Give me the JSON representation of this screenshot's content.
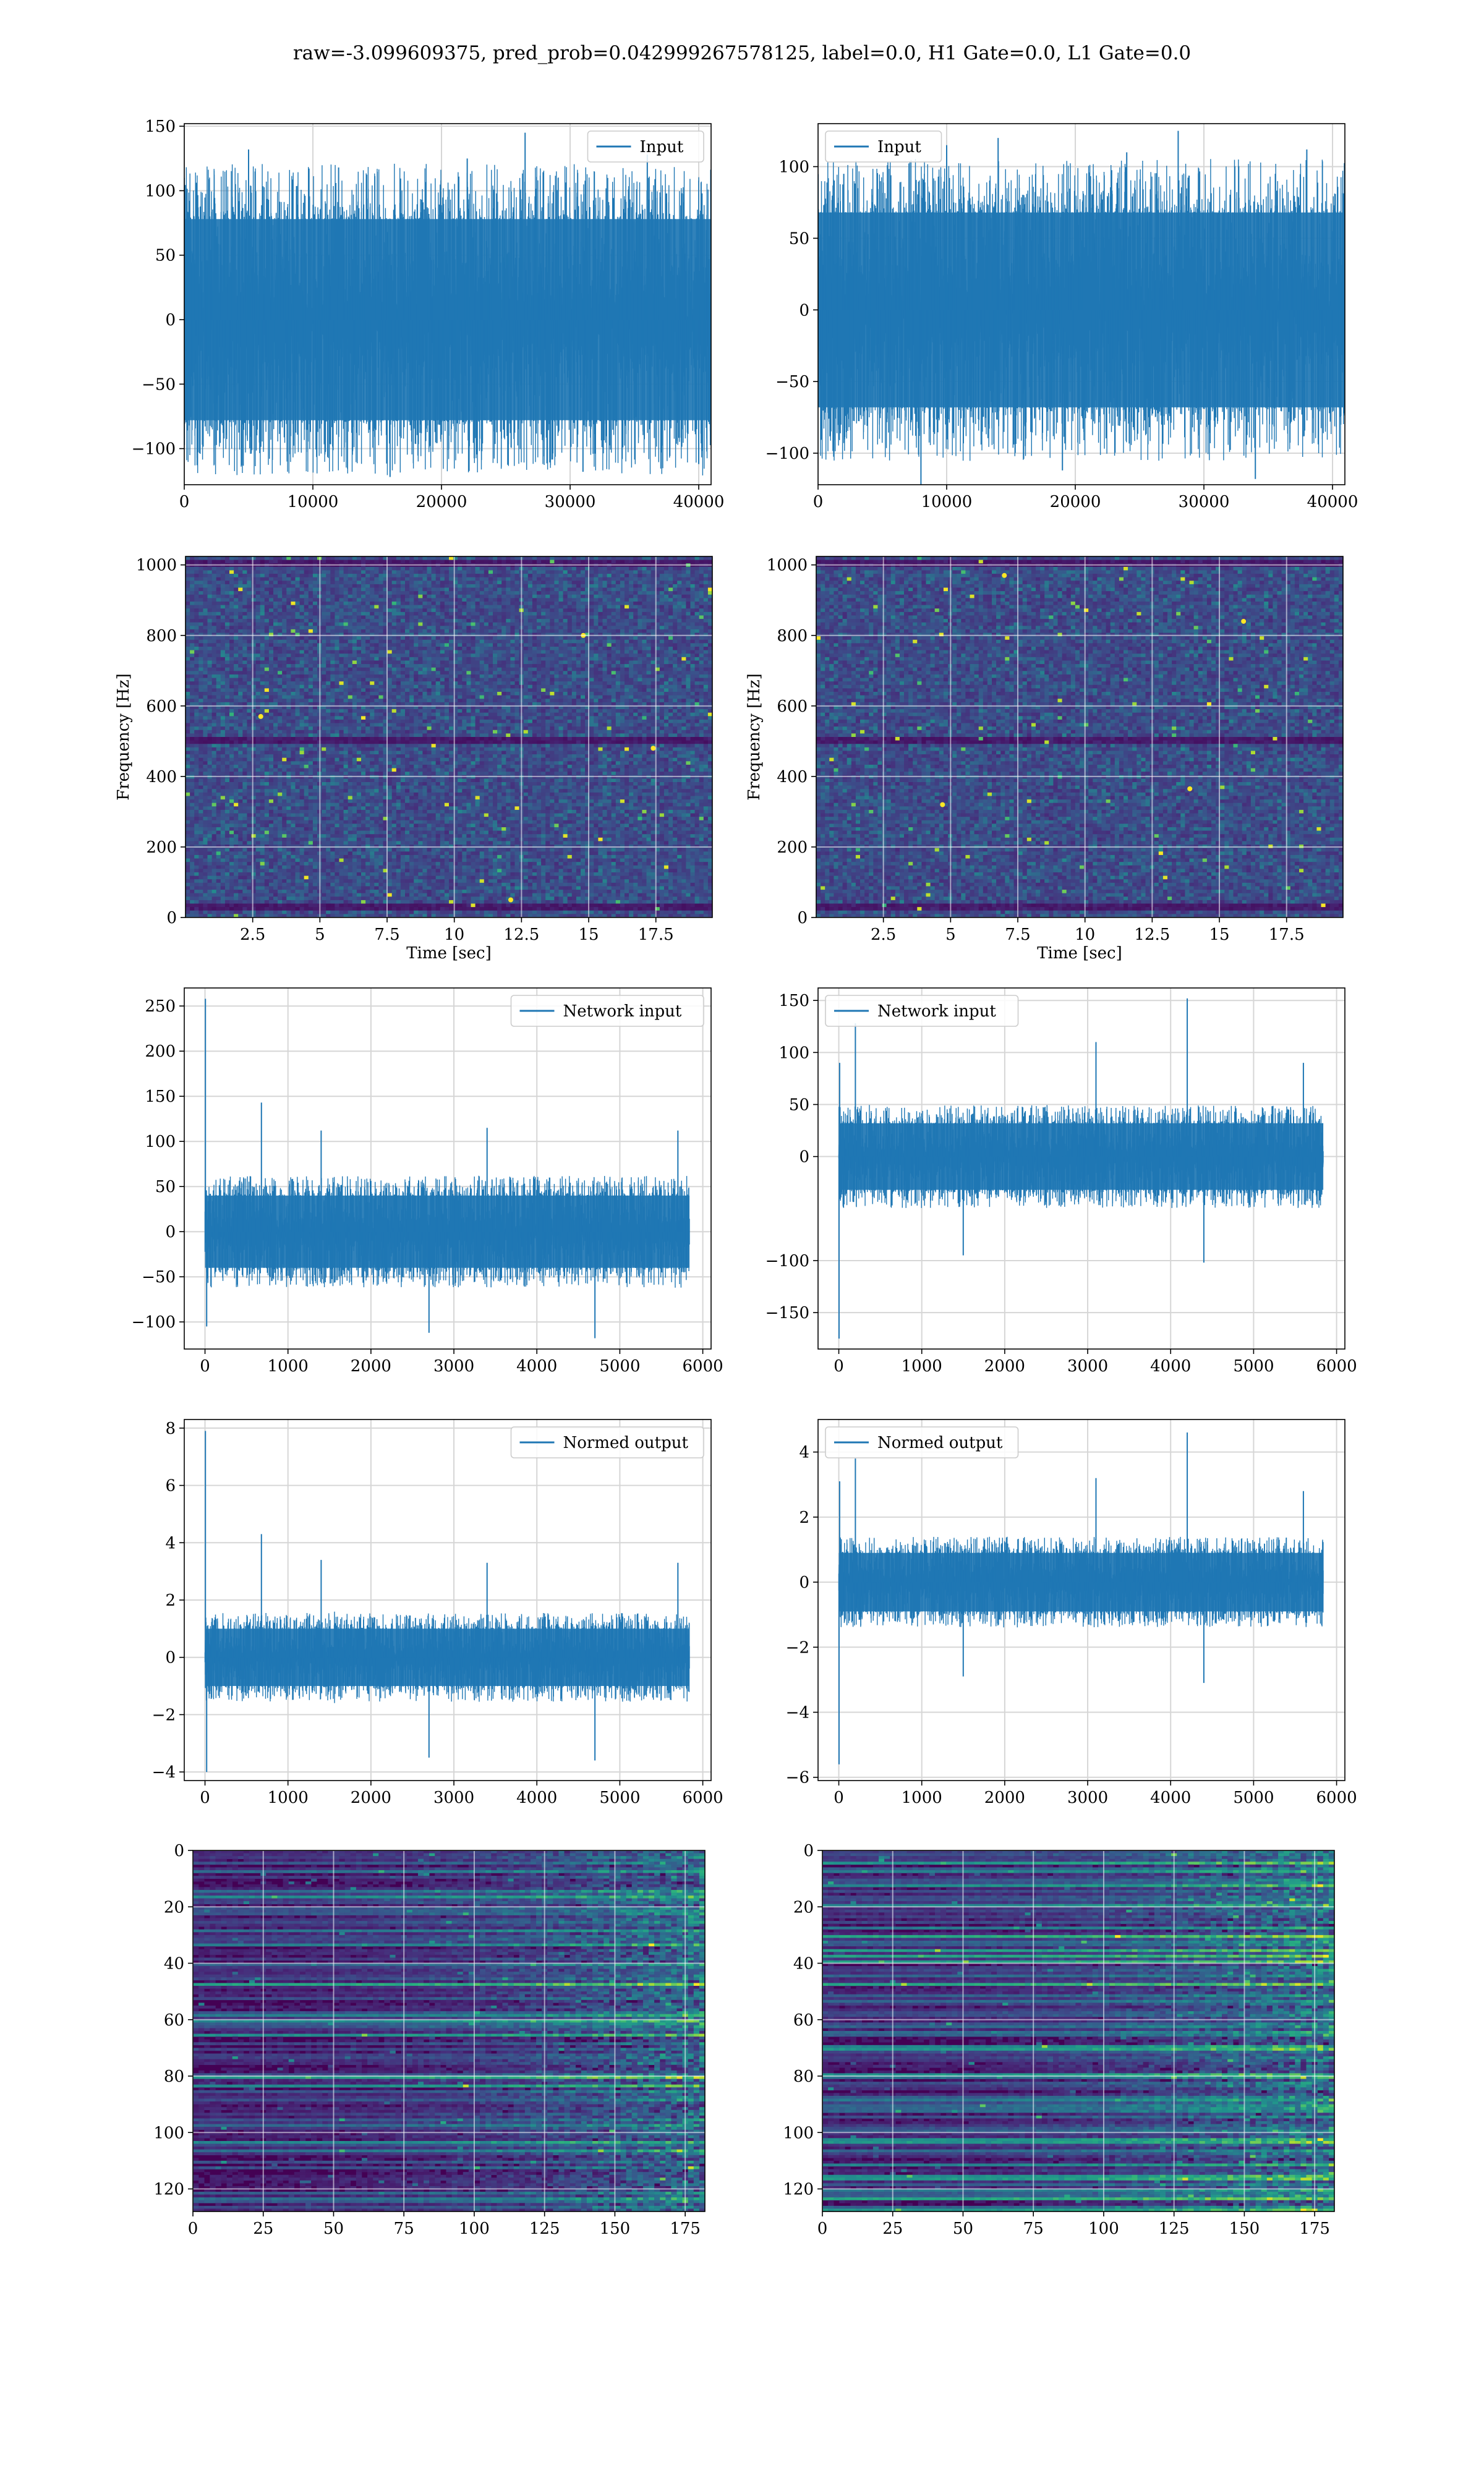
{
  "figure": {
    "suptitle": "raw=-3.099609375, pred_prob=0.042999267578125, label=0.0, H1 Gate=0.0, L1 Gate=0.0",
    "colors": {
      "line": "#1f77b4",
      "grid": "#d6d6d6",
      "viridis_low": "#440154",
      "viridis_mid": "#21918c",
      "viridis_high": "#fde725"
    }
  },
  "chart_data": [
    {
      "id": "input_left",
      "type": "line",
      "legend": [
        "Input"
      ],
      "legend_loc": "upper right",
      "grid": true,
      "xlim": [
        0,
        40960
      ],
      "ylim": [
        -128,
        152
      ],
      "xticks": [
        0,
        10000,
        20000,
        30000,
        40000
      ],
      "yticks": [
        -100,
        -50,
        0,
        50,
        100,
        150
      ],
      "xlabel": "",
      "ylabel": "",
      "series": [
        {
          "name": "Input",
          "n": 40960,
          "start": 0,
          "band": [
            -78,
            78
          ],
          "x": [
            0,
            0,
            5000,
            8000,
            12000,
            16000,
            22000,
            26500,
            31000,
            36000,
            40000,
            40960
          ],
          "y": [
            0,
            110,
            132,
            -110,
            118,
            -122,
            125,
            145,
            -118,
            128,
            -112,
            0
          ]
        }
      ]
    },
    {
      "id": "input_right",
      "type": "line",
      "legend": [
        "Input"
      ],
      "legend_loc": "upper left",
      "grid": true,
      "xlim": [
        0,
        40960
      ],
      "ylim": [
        -122,
        130
      ],
      "xticks": [
        0,
        10000,
        20000,
        30000,
        40000
      ],
      "yticks": [
        -100,
        -50,
        0,
        50,
        100
      ],
      "xlabel": "",
      "ylabel": "",
      "series": [
        {
          "name": "Input",
          "n": 40960,
          "start": 0,
          "band": [
            -68,
            68
          ],
          "x": [
            0,
            2000,
            8000,
            10000,
            14000,
            19000,
            24000,
            28000,
            34000,
            38000,
            40960
          ],
          "y": [
            0,
            95,
            -122,
            115,
            120,
            -112,
            110,
            125,
            -118,
            112,
            0
          ]
        }
      ]
    },
    {
      "id": "spectrogram_left",
      "type": "heatmap",
      "colormap": "viridis",
      "grid": true,
      "xlim": [
        0,
        19.6
      ],
      "ylim": [
        0,
        1024
      ],
      "xticks": [
        2.5,
        5.0,
        7.5,
        10.0,
        12.5,
        15.0,
        17.5
      ],
      "yticks": [
        0,
        200,
        400,
        600,
        800,
        1000
      ],
      "xlabel": "Time [sec]",
      "ylabel": "Frequency [Hz]",
      "features": {
        "dark_bands_hz": [
          30,
          500,
          1005
        ],
        "sparkle_points": [
          [
            2.8,
            570
          ],
          [
            12.1,
            50
          ],
          [
            14.8,
            800
          ],
          [
            17.4,
            480
          ]
        ]
      }
    },
    {
      "id": "spectrogram_right",
      "type": "heatmap",
      "colormap": "viridis",
      "grid": true,
      "xlim": [
        0,
        19.6
      ],
      "ylim": [
        0,
        1024
      ],
      "xticks": [
        2.5,
        5.0,
        7.5,
        10.0,
        12.5,
        15.0,
        17.5
      ],
      "yticks": [
        0,
        200,
        400,
        600,
        800,
        1000
      ],
      "xlabel": "Time [sec]",
      "ylabel": "Frequency [Hz]",
      "features": {
        "dark_bands_hz": [
          30,
          500,
          1005
        ],
        "sparkle_points": [
          [
            7.0,
            970
          ],
          [
            13.9,
            365
          ],
          [
            15.9,
            840
          ],
          [
            4.7,
            320
          ]
        ]
      }
    },
    {
      "id": "network_input_left",
      "type": "line",
      "legend": [
        "Network input"
      ],
      "legend_loc": "upper right",
      "grid": true,
      "xlim": [
        -250,
        6100
      ],
      "ylim": [
        -130,
        270
      ],
      "xticks": [
        0,
        1000,
        2000,
        3000,
        4000,
        5000,
        6000
      ],
      "yticks": [
        -100,
        -50,
        0,
        50,
        100,
        150,
        200,
        250
      ],
      "xlabel": "",
      "ylabel": "",
      "series": [
        {
          "name": "Network input",
          "n": 5840,
          "start": 0,
          "band": [
            -40,
            40
          ],
          "x": [
            0,
            5,
            20,
            680,
            1400,
            2700,
            3400,
            4700,
            5700,
            5840
          ],
          "y": [
            0,
            258,
            -105,
            143,
            112,
            -112,
            115,
            -118,
            112,
            0
          ]
        }
      ]
    },
    {
      "id": "network_input_right",
      "type": "line",
      "legend": [
        "Network input"
      ],
      "legend_loc": "upper left",
      "grid": true,
      "xlim": [
        -250,
        6100
      ],
      "ylim": [
        -185,
        162
      ],
      "xticks": [
        0,
        1000,
        2000,
        3000,
        4000,
        5000,
        6000
      ],
      "yticks": [
        -150,
        -100,
        0,
        50,
        100,
        150
      ],
      "xlabel": "",
      "ylabel": "",
      "series": [
        {
          "name": "Network input",
          "n": 5840,
          "start": 0,
          "band": [
            -32,
            32
          ],
          "x": [
            0,
            3,
            10,
            200,
            1500,
            3100,
            4200,
            4400,
            5600,
            5840
          ],
          "y": [
            0,
            -175,
            90,
            128,
            -95,
            110,
            152,
            -102,
            90,
            0
          ]
        }
      ]
    },
    {
      "id": "normed_output_left",
      "type": "line",
      "legend": [
        "Normed output"
      ],
      "legend_loc": "upper right",
      "grid": true,
      "xlim": [
        -250,
        6100
      ],
      "ylim": [
        -4.3,
        8.3
      ],
      "xticks": [
        0,
        1000,
        2000,
        3000,
        4000,
        5000,
        6000
      ],
      "yticks": [
        -4,
        -2,
        0,
        2,
        4,
        6,
        8
      ],
      "xlabel": "",
      "ylabel": "",
      "series": [
        {
          "name": "Normed output",
          "n": 5840,
          "start": 0,
          "band": [
            -1.0,
            1.0
          ],
          "x": [
            0,
            5,
            20,
            680,
            1400,
            2700,
            3400,
            4700,
            5700,
            5840
          ],
          "y": [
            0,
            7.9,
            -4.0,
            4.3,
            3.4,
            -3.5,
            3.3,
            -3.6,
            3.3,
            0
          ]
        }
      ]
    },
    {
      "id": "normed_output_right",
      "type": "line",
      "legend": [
        "Normed output"
      ],
      "legend_loc": "upper left",
      "grid": true,
      "xlim": [
        -250,
        6100
      ],
      "ylim": [
        -6.1,
        5.0
      ],
      "xticks": [
        0,
        1000,
        2000,
        3000,
        4000,
        5000,
        6000
      ],
      "yticks": [
        -6,
        -4,
        -2,
        0,
        2,
        4
      ],
      "xlabel": "",
      "ylabel": "",
      "series": [
        {
          "name": "Normed output",
          "n": 5840,
          "start": 0,
          "band": [
            -0.9,
            0.9
          ],
          "x": [
            0,
            3,
            10,
            200,
            1500,
            3100,
            4200,
            4400,
            5600,
            5840
          ],
          "y": [
            0,
            -5.6,
            3.1,
            3.8,
            -2.9,
            3.2,
            4.6,
            -3.1,
            2.8,
            0
          ]
        }
      ]
    },
    {
      "id": "embedding_left",
      "type": "heatmap",
      "colormap": "viridis",
      "grid": true,
      "xlim": [
        0,
        182
      ],
      "ylim": [
        128,
        0
      ],
      "xticks": [
        0,
        25,
        50,
        75,
        100,
        125,
        150,
        175
      ],
      "yticks": [
        0,
        20,
        40,
        60,
        80,
        100,
        120
      ],
      "xlabel": "",
      "ylabel": "",
      "rows": 128,
      "cols": 182,
      "features": {
        "brightens_toward_right": true
      }
    },
    {
      "id": "embedding_right",
      "type": "heatmap",
      "colormap": "viridis",
      "grid": true,
      "xlim": [
        0,
        182
      ],
      "ylim": [
        128,
        0
      ],
      "xticks": [
        0,
        25,
        50,
        75,
        100,
        125,
        150,
        175
      ],
      "yticks": [
        0,
        20,
        40,
        60,
        80,
        100,
        120
      ],
      "xlabel": "",
      "ylabel": "",
      "rows": 128,
      "cols": 182,
      "features": {
        "brightens_toward_right": true
      }
    }
  ]
}
